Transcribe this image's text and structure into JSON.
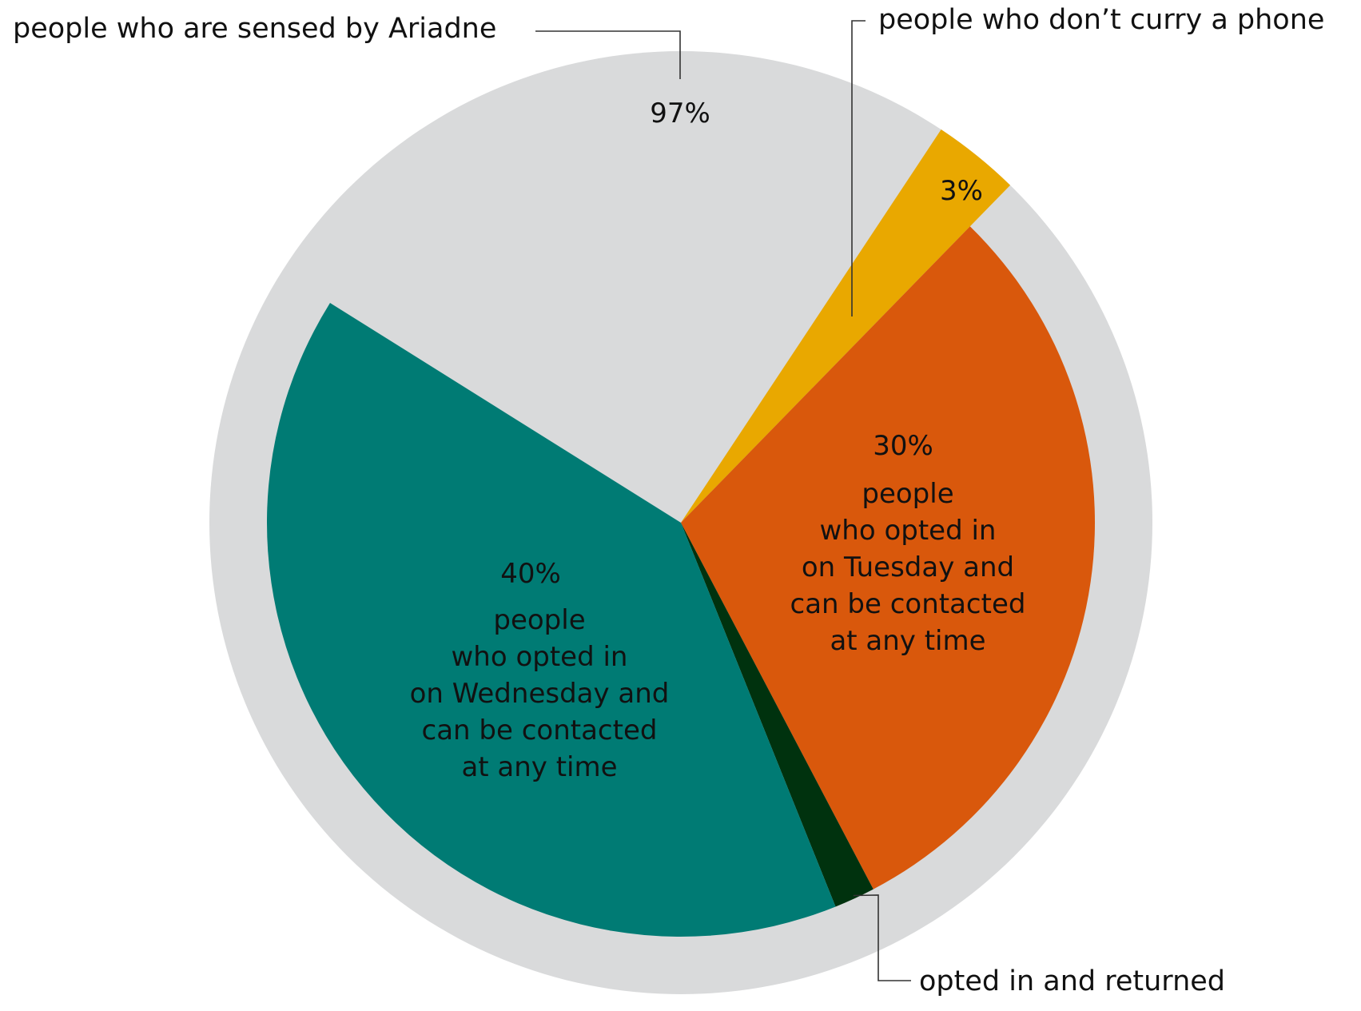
{
  "chart_data": {
    "type": "pie",
    "title": "",
    "outer_ring": {
      "slices": [
        {
          "key": "sensed",
          "label": "people who are sensed by Ariadne",
          "pct_label": "97%",
          "value": 97,
          "color": "#d9dadb"
        },
        {
          "key": "no_phone",
          "label": "people who don’t curry a phone",
          "pct_label": "3%",
          "value": 3,
          "color": "#e9a800"
        }
      ]
    },
    "inner_slices": [
      {
        "key": "tuesday",
        "pct_label": "30%",
        "value": 30,
        "color": "#d9580c",
        "lines": [
          "people",
          "who opted in",
          "on Tuesday and",
          "can be contacted",
          "at any time"
        ]
      },
      {
        "key": "returned",
        "label": "opted in and returned",
        "value": 1.6,
        "color": "#00320e"
      },
      {
        "key": "wednesday",
        "pct_label": "40%",
        "value": 40,
        "color": "#007b74",
        "lines": [
          "people",
          "who opted in",
          "on Wednesday and",
          "can be contacted",
          "at any time"
        ]
      }
    ]
  }
}
